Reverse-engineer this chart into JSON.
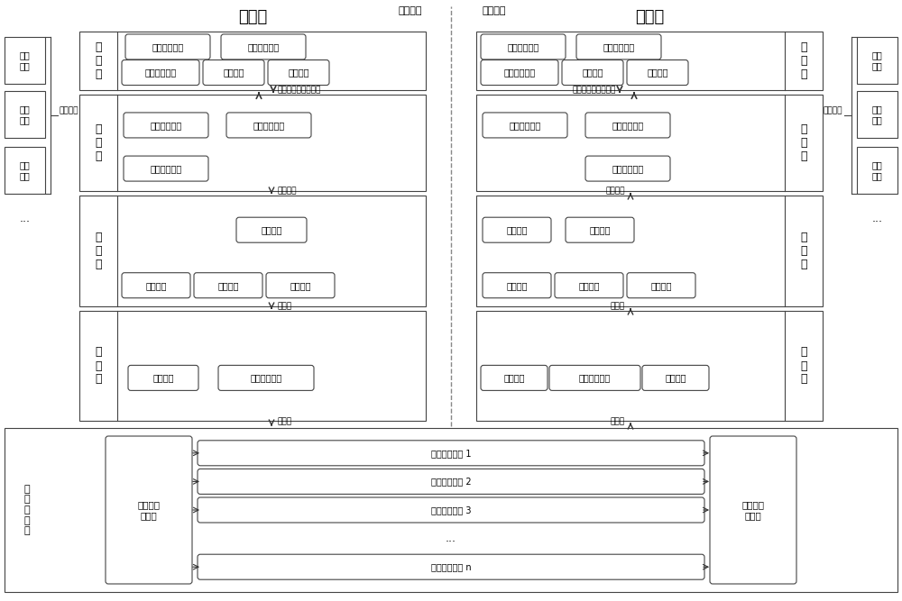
{
  "title_left": "发送端",
  "title_right": "接收端",
  "label_non_secret": "非密网络",
  "label_secret": "涉密网络",
  "bg_color": "#ffffff",
  "sender_ctrl": "发送端控\n制单元",
  "receiver_ctrl": "接收端控\n制单元",
  "channel_label": "传\n输\n通\n道\n层",
  "channels": [
    "单向传输通道 1",
    "单向传输通道 2",
    "单向传输通道 3",
    "...",
    "单向传输通道 n"
  ],
  "app_data_left": "应用数据",
  "app_data_right": "应用数据",
  "left_arrow1_label": "策略下发、信息收集",
  "right_arrow1_label": "策略下发、信息收集",
  "arrow_app_data": "应用数据",
  "arrow_data_block": "数据块",
  "arrow_data_frame": "数据帧"
}
